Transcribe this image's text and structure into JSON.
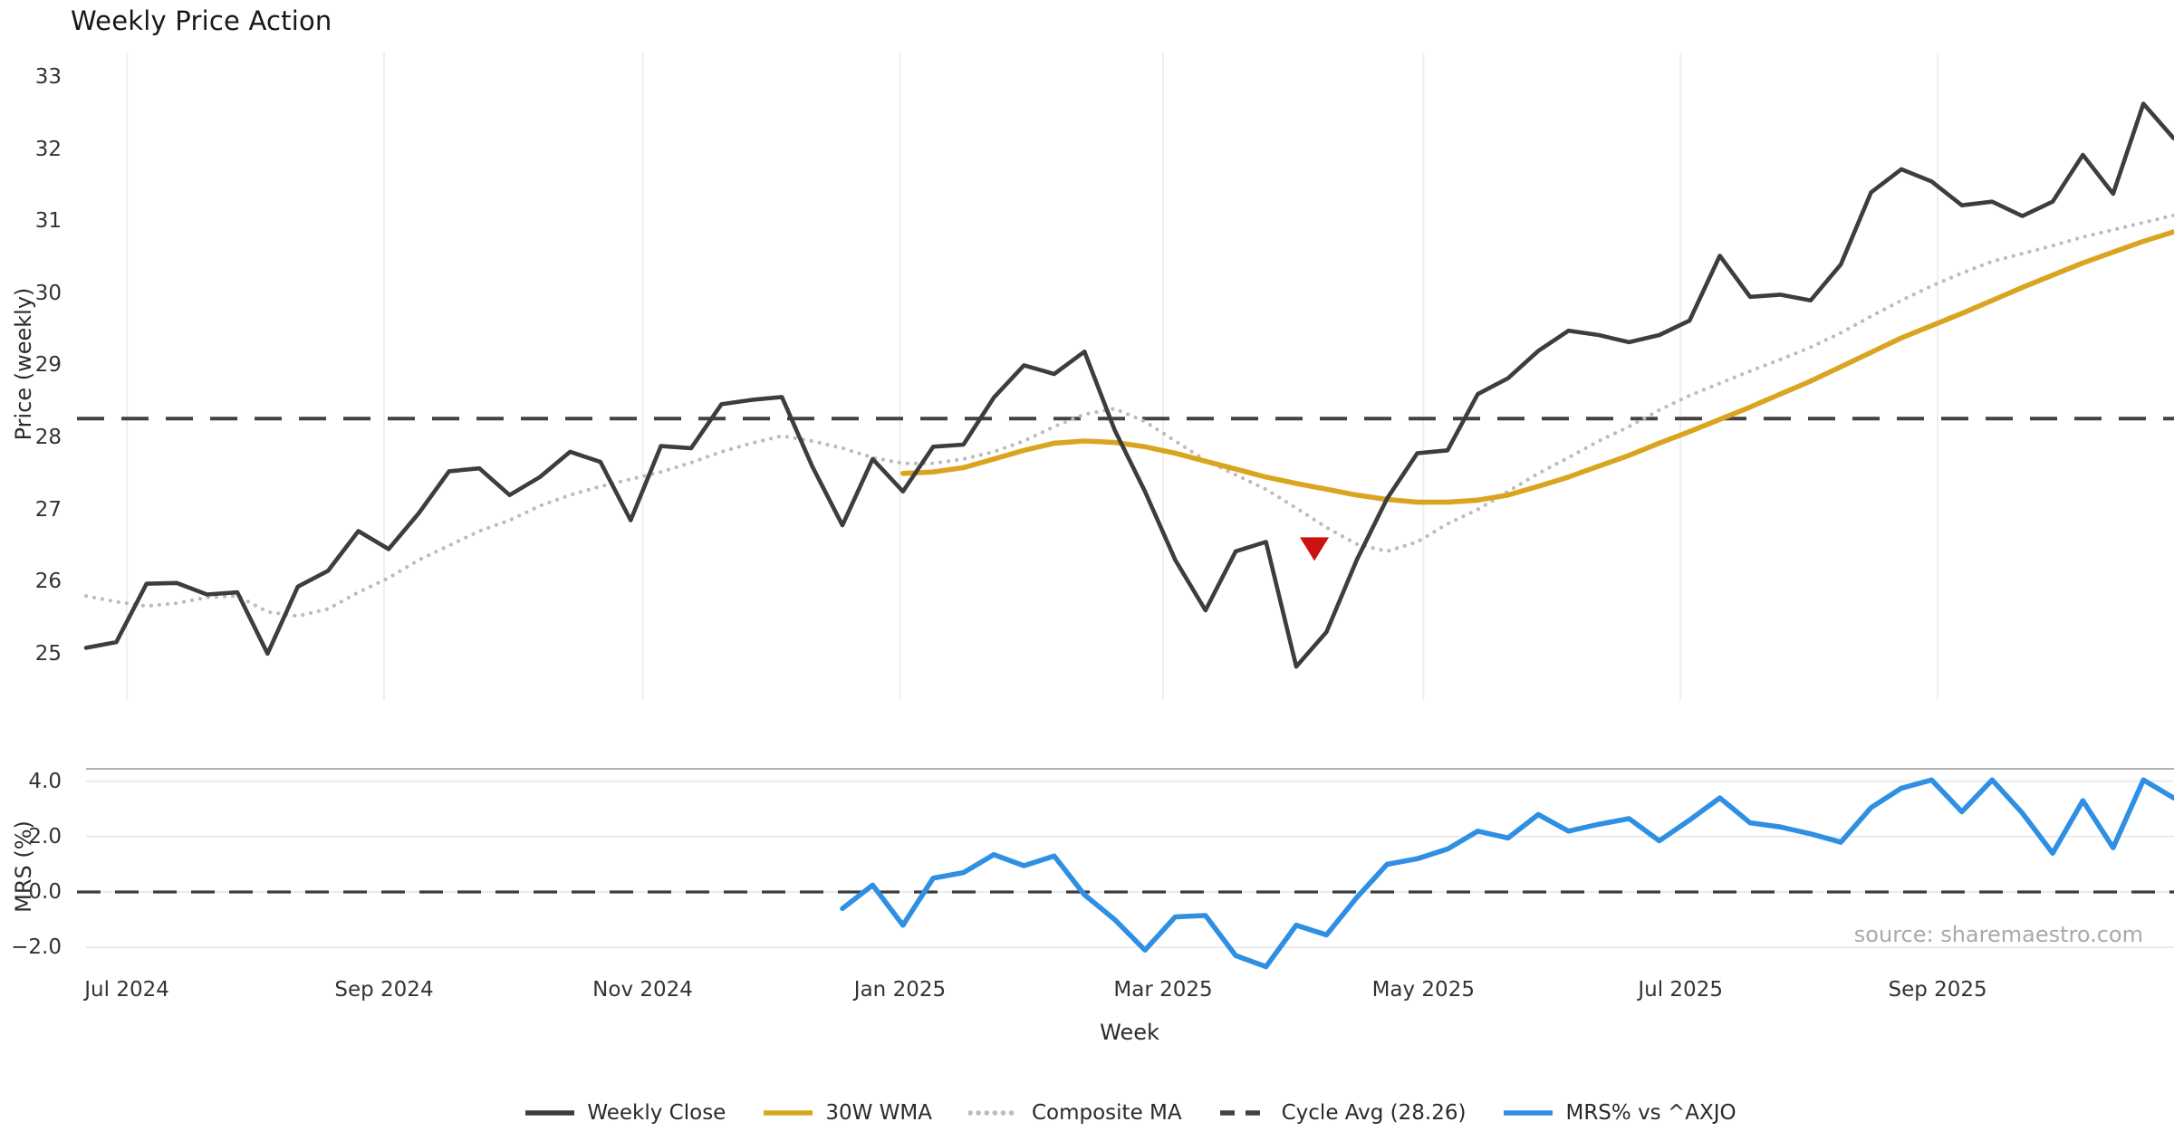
{
  "title": "Weekly Price Action",
  "source_note": "source: sharemaestro.com",
  "colors": {
    "weekly_close": "#3d3d3d",
    "wma30": "#d9a521",
    "composite_ma": "#bcbcbc",
    "cycle_avg": "#424242",
    "mrs": "#2e8fe3",
    "marker": "#cc1111",
    "grid_vertical": "#edeff1",
    "grid_horizontal": "#e9ebee",
    "panel_spine": "#b0b0b0",
    "zero_dash": "#3d3d3d"
  },
  "x_axis": {
    "label": "Week",
    "ticks": [
      {
        "label": "Jul 2024",
        "week_index": 1.35
      },
      {
        "label": "Sep 2024",
        "week_index": 9.85
      },
      {
        "label": "Nov 2024",
        "week_index": 18.4
      },
      {
        "label": "Jan 2025",
        "week_index": 26.9
      },
      {
        "label": "Mar 2025",
        "week_index": 35.6
      },
      {
        "label": "May 2025",
        "week_index": 44.2
      },
      {
        "label": "Jul 2025",
        "week_index": 52.7
      },
      {
        "label": "Sep 2025",
        "week_index": 61.2
      }
    ]
  },
  "legend": [
    {
      "label": "Weekly Close",
      "color": "#3d3d3d",
      "style": "solid"
    },
    {
      "label": "30W WMA",
      "color": "#d9a521",
      "style": "solid"
    },
    {
      "label": "Composite MA",
      "color": "#bcbcbc",
      "style": "dotted"
    },
    {
      "label": "Cycle Avg (28.26)",
      "color": "#424242",
      "style": "dashed"
    },
    {
      "label": "MRS% vs ^AXJO",
      "color": "#2e8fe3",
      "style": "solid"
    }
  ],
  "chart_data": [
    {
      "type": "line",
      "panel": "price",
      "ylabel": "Price (weekly)",
      "yticks": [
        33,
        32,
        31,
        30,
        29,
        28,
        27,
        26,
        25
      ],
      "ylim": [
        24.4,
        33.3
      ],
      "x_unit": "week_index",
      "grid": "vertical-only",
      "cycle_avg": 28.26,
      "marker": {
        "shape": "triangle-down",
        "x_index": 40.6,
        "value": 26.45
      },
      "series": [
        {
          "name": "Weekly Close",
          "style": "solid",
          "start_index": 0,
          "values": [
            25.08,
            25.16,
            25.97,
            25.98,
            25.82,
            25.85,
            25.0,
            25.93,
            26.15,
            26.7,
            26.45,
            26.95,
            27.53,
            27.57,
            27.2,
            27.45,
            27.8,
            27.66,
            26.85,
            27.88,
            27.85,
            28.46,
            28.52,
            28.56,
            27.6,
            26.78,
            27.7,
            27.25,
            27.87,
            27.9,
            28.55,
            29.0,
            28.88,
            29.19,
            28.1,
            27.25,
            26.3,
            25.6,
            26.42,
            26.55,
            24.82,
            25.3,
            26.3,
            27.15,
            27.78,
            27.82,
            28.6,
            28.82,
            29.2,
            29.48,
            29.42,
            29.32,
            29.42,
            29.62,
            30.52,
            29.95,
            29.98,
            29.9,
            30.4,
            31.4,
            31.72,
            31.55,
            31.22,
            31.27,
            31.07,
            31.27,
            31.92,
            31.38,
            32.63,
            32.15
          ]
        },
        {
          "name": "30W WMA",
          "style": "solid",
          "start_index": 27,
          "values": [
            27.5,
            27.52,
            27.58,
            27.7,
            27.82,
            27.92,
            27.95,
            27.93,
            27.87,
            27.78,
            27.67,
            27.56,
            27.45,
            27.36,
            27.28,
            27.2,
            27.14,
            27.1,
            27.1,
            27.13,
            27.2,
            27.32,
            27.45,
            27.6,
            27.75,
            27.92,
            28.08,
            28.25,
            28.42,
            28.6,
            28.78,
            28.98,
            29.18,
            29.38,
            29.55,
            29.72,
            29.9,
            30.08,
            30.25,
            30.42,
            30.57,
            30.72,
            30.85
          ]
        },
        {
          "name": "Composite MA",
          "style": "dotted",
          "start_index": 0,
          "values": [
            25.8,
            25.72,
            25.66,
            25.7,
            25.78,
            25.8,
            25.58,
            25.52,
            25.62,
            25.85,
            26.05,
            26.3,
            26.5,
            26.7,
            26.85,
            27.05,
            27.2,
            27.32,
            27.42,
            27.52,
            27.65,
            27.8,
            27.92,
            28.02,
            27.95,
            27.85,
            27.72,
            27.64,
            27.64,
            27.7,
            27.8,
            27.95,
            28.15,
            28.32,
            28.4,
            28.22,
            27.95,
            27.68,
            27.48,
            27.28,
            27.02,
            26.75,
            26.52,
            26.42,
            26.55,
            26.8,
            27.0,
            27.25,
            27.5,
            27.72,
            27.95,
            28.15,
            28.38,
            28.58,
            28.75,
            28.92,
            29.08,
            29.25,
            29.45,
            29.68,
            29.9,
            30.1,
            30.28,
            30.44,
            30.55,
            30.66,
            30.78,
            30.88,
            30.98,
            31.08
          ]
        },
        {
          "name": "Cycle Avg (28.26)",
          "style": "dashed-hline",
          "value": 28.26
        }
      ]
    },
    {
      "type": "line",
      "panel": "mrs",
      "ylabel": "MRS (%)",
      "ytick_labels": [
        "4.0",
        "2.0",
        "0.0",
        "−2.0"
      ],
      "ytick_values": [
        4,
        2,
        0,
        -2
      ],
      "ylim": [
        -2.8,
        4.42
      ],
      "zero_line_dashed": true,
      "grid": "horizontal-only",
      "series": [
        {
          "name": "MRS% vs ^AXJO",
          "style": "solid",
          "start_index": 25,
          "values": [
            -0.6,
            0.25,
            -1.2,
            0.5,
            0.7,
            1.35,
            0.95,
            1.3,
            -0.1,
            -1.0,
            -2.1,
            -0.9,
            -0.85,
            -2.3,
            -2.7,
            -1.2,
            -1.55,
            -0.2,
            1.0,
            1.2,
            1.55,
            2.2,
            1.95,
            2.8,
            2.2,
            2.45,
            2.65,
            1.85,
            2.6,
            3.4,
            2.5,
            2.35,
            2.1,
            1.8,
            3.05,
            3.75,
            4.05,
            2.9,
            4.05,
            2.85,
            1.4,
            3.3,
            1.6,
            4.05,
            3.4
          ]
        }
      ]
    }
  ]
}
